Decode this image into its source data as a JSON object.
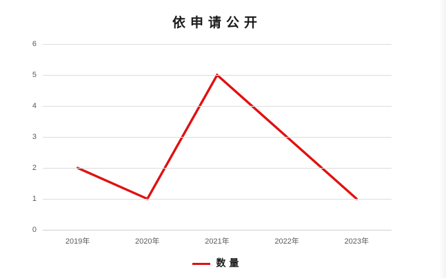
{
  "chart_data": {
    "type": "line",
    "title": "依申请公开",
    "categories": [
      "2019年",
      "2020年",
      "2021年",
      "2022年",
      "2023年"
    ],
    "series": [
      {
        "name": "数量",
        "values": [
          2,
          1,
          5,
          3,
          1
        ],
        "color": "#e01010"
      }
    ],
    "xlabel": "",
    "ylabel": "",
    "ylim": [
      0,
      6
    ],
    "yticks": [
      0,
      1,
      2,
      3,
      4,
      5,
      6
    ],
    "grid": "horizontal",
    "gridline_color": "#dcdcdc",
    "tick_label_color": "#595959",
    "legend_position": "bottom"
  }
}
